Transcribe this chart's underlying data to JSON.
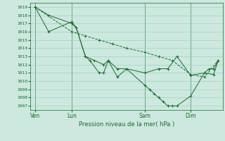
{
  "xlabel": "Pression niveau de la mer( hPa )",
  "ylim": [
    1006.5,
    1019.5
  ],
  "yticks": [
    1007,
    1008,
    1009,
    1010,
    1011,
    1012,
    1013,
    1014,
    1015,
    1016,
    1017,
    1018,
    1019
  ],
  "bg_color": "#cce8df",
  "grid_color": "#99ccbb",
  "line_color": "#1a6b2a",
  "xtick_labels": [
    "Ven",
    "Lun",
    "Sam",
    "Dim"
  ],
  "xtick_positions": [
    0,
    4,
    12,
    17
  ],
  "vline_positions": [
    0,
    4,
    12,
    17
  ],
  "series1_x": [
    0,
    1.5,
    4,
    4.5,
    5.5,
    6,
    7,
    7.5,
    8,
    9,
    10,
    12,
    12.5,
    13,
    13.5,
    14,
    14.5,
    15,
    15.5,
    17,
    18.5,
    19,
    19.5,
    20
  ],
  "series1_y": [
    1019.0,
    1018.0,
    1017.0,
    1016.5,
    1013.0,
    1012.5,
    1011.0,
    1011.0,
    1012.5,
    1010.5,
    1011.5,
    1009.5,
    1009.0,
    1008.5,
    1008.0,
    1007.5,
    1007.0,
    1007.0,
    1007.0,
    1008.2,
    1011.0,
    1011.5,
    1011.5,
    1012.5
  ],
  "series2_x": [
    0,
    4,
    5.5,
    7,
    8.5,
    10,
    12,
    13.5,
    15,
    17,
    18.5,
    20
  ],
  "series2_y": [
    1019.0,
    1016.0,
    1015.5,
    1015.0,
    1014.5,
    1014.0,
    1013.5,
    1013.0,
    1012.5,
    1010.8,
    1010.5,
    1012.5
  ],
  "series3_x": [
    0,
    1.5,
    4,
    4.5,
    5.5,
    6.5,
    7.5,
    8,
    9,
    10,
    12,
    13.5,
    14.5,
    15.5,
    17,
    18.5,
    19.5,
    20
  ],
  "series3_y": [
    1019.0,
    1016.0,
    1017.2,
    1016.5,
    1013.0,
    1012.5,
    1012.0,
    1012.5,
    1011.5,
    1011.5,
    1011.0,
    1011.5,
    1011.5,
    1013.0,
    1010.7,
    1011.0,
    1010.8,
    1012.5
  ]
}
